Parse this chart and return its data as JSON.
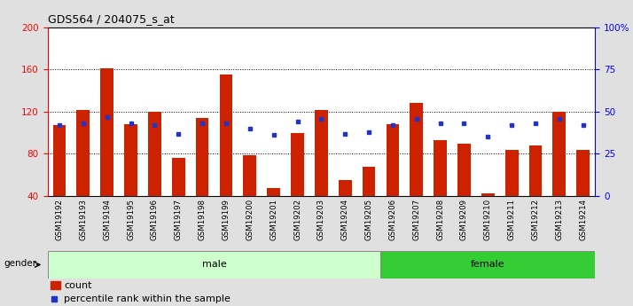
{
  "title": "GDS564 / 204075_s_at",
  "samples": [
    "GSM19192",
    "GSM19193",
    "GSM19194",
    "GSM19195",
    "GSM19196",
    "GSM19197",
    "GSM19198",
    "GSM19199",
    "GSM19200",
    "GSM19201",
    "GSM19202",
    "GSM19203",
    "GSM19204",
    "GSM19205",
    "GSM19206",
    "GSM19207",
    "GSM19208",
    "GSM19209",
    "GSM19210",
    "GSM19211",
    "GSM19212",
    "GSM19213",
    "GSM19214"
  ],
  "counts": [
    107,
    122,
    161,
    108,
    120,
    76,
    114,
    155,
    79,
    47,
    100,
    122,
    55,
    68,
    108,
    128,
    93,
    90,
    42,
    84,
    88,
    120,
    84
  ],
  "percentiles_pct": [
    42,
    43,
    47,
    43,
    42,
    37,
    43,
    43,
    40,
    36,
    44,
    46,
    37,
    38,
    42,
    46,
    43,
    43,
    35,
    42,
    43,
    46,
    42
  ],
  "male_count": 14,
  "female_count": 9,
  "ymin": 40,
  "ymax": 200,
  "yright_min": 0,
  "yright_max": 100,
  "yticks_left": [
    40,
    80,
    120,
    160,
    200
  ],
  "yticks_right": [
    0,
    25,
    50,
    75,
    100
  ],
  "ytick_right_labels": [
    "0",
    "25",
    "50",
    "75",
    "100%"
  ],
  "bar_color": "#cc2200",
  "dot_color": "#2233cc",
  "male_bg": "#ccffcc",
  "female_bg": "#33cc33",
  "bar_width": 0.55,
  "legend_count_label": "count",
  "legend_pct_label": "percentile rank within the sample",
  "fig_bg": "#e0e0e0",
  "plot_bg": "#ffffff"
}
